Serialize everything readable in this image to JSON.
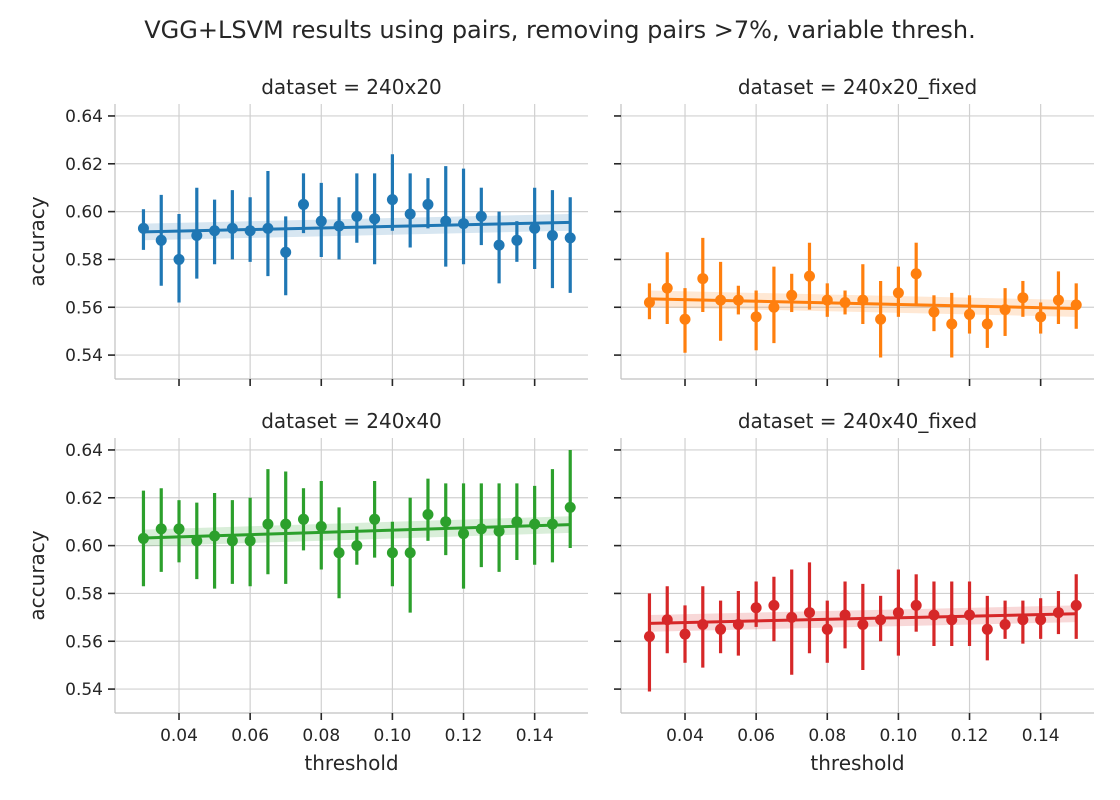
{
  "chart_data": {
    "type": "scatter",
    "title": "VGG+LSVM results using pairs, removing pairs >7%, variable thresh.",
    "xlabel": "threshold",
    "ylabel": "accuracy",
    "xlim": [
      0.022,
      0.155
    ],
    "ylim": [
      0.53,
      0.645
    ],
    "x_ticks": [
      "0.04",
      "0.06",
      "0.08",
      "0.10",
      "0.12",
      "0.14"
    ],
    "x_tick_values": [
      0.04,
      0.06,
      0.08,
      0.1,
      0.12,
      0.14
    ],
    "y_ticks": [
      "0.54",
      "0.56",
      "0.58",
      "0.60",
      "0.62",
      "0.64"
    ],
    "y_tick_values": [
      0.54,
      0.56,
      0.58,
      0.6,
      0.62,
      0.64
    ],
    "grid": true,
    "x": [
      0.03,
      0.035,
      0.04,
      0.045,
      0.05,
      0.055,
      0.06,
      0.065,
      0.07,
      0.075,
      0.08,
      0.085,
      0.09,
      0.095,
      0.1,
      0.105,
      0.11,
      0.115,
      0.12,
      0.125,
      0.13,
      0.135,
      0.14,
      0.145,
      0.15
    ],
    "panels": [
      {
        "title": "dataset = 240x20",
        "color": "#1f77b4",
        "y": [
          0.593,
          0.588,
          0.58,
          0.59,
          0.592,
          0.593,
          0.592,
          0.593,
          0.583,
          0.603,
          0.596,
          0.594,
          0.598,
          0.597,
          0.605,
          0.599,
          0.603,
          0.596,
          0.595,
          0.598,
          0.586,
          0.588,
          0.593,
          0.59,
          0.589
        ],
        "ci_low": [
          0.584,
          0.569,
          0.562,
          0.572,
          0.578,
          0.58,
          0.579,
          0.573,
          0.565,
          0.591,
          0.581,
          0.58,
          0.587,
          0.578,
          0.592,
          0.585,
          0.593,
          0.577,
          0.578,
          0.586,
          0.57,
          0.579,
          0.576,
          0.568,
          0.566
        ],
        "ci_high": [
          0.601,
          0.607,
          0.599,
          0.61,
          0.605,
          0.609,
          0.606,
          0.617,
          0.598,
          0.616,
          0.612,
          0.606,
          0.616,
          0.616,
          0.624,
          0.616,
          0.614,
          0.619,
          0.618,
          0.61,
          0.6,
          0.596,
          0.61,
          0.609,
          0.606
        ],
        "fit": [
          0.5915,
          0.5955
        ]
      },
      {
        "title": "dataset = 240x20_fixed",
        "color": "#ff7f0e",
        "y": [
          0.562,
          0.568,
          0.555,
          0.572,
          0.563,
          0.563,
          0.556,
          0.56,
          0.565,
          0.573,
          0.563,
          0.562,
          0.563,
          0.555,
          0.566,
          0.574,
          0.558,
          0.553,
          0.557,
          0.553,
          0.559,
          0.564,
          0.556,
          0.563,
          0.561
        ],
        "ci_low": [
          0.555,
          0.553,
          0.541,
          0.558,
          0.546,
          0.557,
          0.542,
          0.545,
          0.558,
          0.559,
          0.556,
          0.557,
          0.553,
          0.539,
          0.556,
          0.561,
          0.55,
          0.539,
          0.549,
          0.543,
          0.548,
          0.556,
          0.549,
          0.553,
          0.551
        ],
        "ci_high": [
          0.57,
          0.583,
          0.568,
          0.589,
          0.579,
          0.569,
          0.567,
          0.577,
          0.574,
          0.587,
          0.57,
          0.567,
          0.578,
          0.571,
          0.577,
          0.587,
          0.565,
          0.566,
          0.565,
          0.561,
          0.568,
          0.571,
          0.562,
          0.575,
          0.57
        ],
        "fit": [
          0.5635,
          0.5595
        ]
      },
      {
        "title": "dataset = 240x40",
        "color": "#2ca02c",
        "y": [
          0.603,
          0.607,
          0.607,
          0.602,
          0.604,
          0.602,
          0.602,
          0.609,
          0.609,
          0.611,
          0.608,
          0.597,
          0.6,
          0.611,
          0.597,
          0.597,
          0.613,
          0.61,
          0.605,
          0.607,
          0.606,
          0.61,
          0.609,
          0.609,
          0.616
        ],
        "ci_low": [
          0.583,
          0.589,
          0.593,
          0.586,
          0.582,
          0.584,
          0.583,
          0.588,
          0.584,
          0.598,
          0.59,
          0.578,
          0.592,
          0.595,
          0.583,
          0.572,
          0.602,
          0.596,
          0.582,
          0.591,
          0.589,
          0.594,
          0.592,
          0.593,
          0.599
        ],
        "ci_high": [
          0.623,
          0.624,
          0.619,
          0.618,
          0.622,
          0.619,
          0.62,
          0.632,
          0.631,
          0.624,
          0.627,
          0.616,
          0.608,
          0.627,
          0.61,
          0.62,
          0.628,
          0.626,
          0.626,
          0.626,
          0.626,
          0.626,
          0.625,
          0.632,
          0.64
        ],
        "fit": [
          0.6032,
          0.6088
        ]
      },
      {
        "title": "dataset = 240x40_fixed",
        "color": "#d62728",
        "y": [
          0.562,
          0.569,
          0.563,
          0.567,
          0.565,
          0.567,
          0.574,
          0.575,
          0.57,
          0.572,
          0.565,
          0.571,
          0.567,
          0.569,
          0.572,
          0.575,
          0.571,
          0.569,
          0.571,
          0.565,
          0.567,
          0.569,
          0.569,
          0.572,
          0.575
        ],
        "ci_low": [
          0.539,
          0.555,
          0.551,
          0.549,
          0.555,
          0.554,
          0.566,
          0.56,
          0.546,
          0.555,
          0.551,
          0.557,
          0.548,
          0.56,
          0.554,
          0.564,
          0.558,
          0.558,
          0.558,
          0.552,
          0.561,
          0.559,
          0.561,
          0.563,
          0.561
        ],
        "ci_high": [
          0.58,
          0.583,
          0.575,
          0.583,
          0.577,
          0.581,
          0.585,
          0.587,
          0.59,
          0.593,
          0.577,
          0.585,
          0.584,
          0.579,
          0.59,
          0.588,
          0.585,
          0.585,
          0.585,
          0.579,
          0.577,
          0.577,
          0.578,
          0.581,
          0.588
        ],
        "fit": [
          0.5675,
          0.5715
        ]
      }
    ]
  }
}
